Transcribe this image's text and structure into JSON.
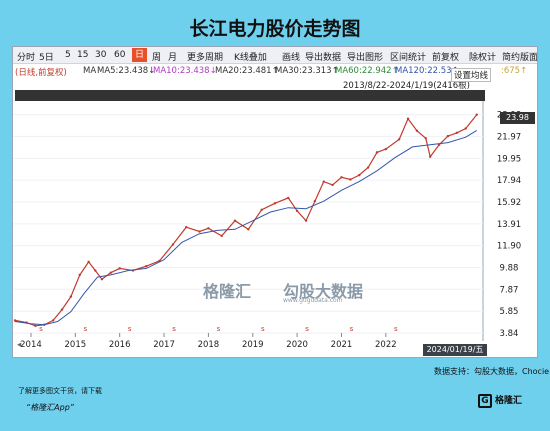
{
  "page_title": "长江电力股价走势图",
  "toolbar": {
    "items": [
      "分时",
      "5日",
      "5",
      "15",
      "30",
      "60",
      "日",
      "周",
      "月",
      "更多周期",
      "K线叠加",
      "画线",
      "导出数据",
      "导出图形",
      "区间统计",
      "前复权",
      "除权计",
      "简约版面"
    ],
    "active": "日"
  },
  "ma_row": {
    "mode": "(日线,前复权)",
    "ma": "MA",
    "ma5": "MA5:23.438↓",
    "ma10": "MA10:23.438↓",
    "ma20": "MA20:23.481↑",
    "ma30": "MA30:23.313↑",
    "ma60": "MA60:22.942↑",
    "ma120": "MA120:22.53↑",
    "extra": ":675↑",
    "settings": "设置均线"
  },
  "date_range": "2013/8/22-2024/1/19(2416根)",
  "crosshair_value": "23.98",
  "x_selected": "2024/01/19/五",
  "watermark": {
    "brand1": "格隆汇",
    "brand2": "勾股大数据",
    "url": "www.gugudata.com"
  },
  "source_text": "数据支持：勾股大数据，Chocie",
  "footer_line1": "了解更多图文干货，请下载",
  "footer_line2": "“格隆汇App”",
  "logo_text": "格隆汇",
  "colors": {
    "price": "#c23a2c",
    "ma_blue": "#3355aa",
    "ma_yellow": "#c9a23a",
    "ma_magenta": "#b03bc0",
    "ma_green": "#2c8a3a"
  },
  "chart_data": {
    "type": "line",
    "title": "长江电力股价走势图",
    "y_ticks": [
      "23.98",
      "21.97",
      "19.95",
      "17.94",
      "15.92",
      "13.91",
      "11.90",
      "9.88",
      "7.87",
      "5.85",
      "3.84"
    ],
    "x_ticks": [
      "2014",
      "2015",
      "2016",
      "2017",
      "2018",
      "2019",
      "2020",
      "2021",
      "2022"
    ],
    "ylim": [
      3.84,
      24.5
    ],
    "series": [
      {
        "x": [
          2013.64,
          2013.9,
          2014.1,
          2014.3,
          2014.5,
          2014.7,
          2014.9,
          2015.1,
          2015.3,
          2015.45,
          2015.6,
          2015.8,
          2016.0,
          2016.3,
          2016.6,
          2016.9,
          2017.2,
          2017.5,
          2017.8,
          2018.0,
          2018.3,
          2018.6,
          2018.9,
          2019.2,
          2019.5,
          2019.8,
          2020.0,
          2020.2,
          2020.4,
          2020.6,
          2020.8,
          2021.0,
          2021.2,
          2021.4,
          2021.6,
          2021.8,
          2022.0,
          2022.3,
          2022.5,
          2022.7,
          2022.9,
          2023.0,
          2023.2,
          2023.4,
          2023.6,
          2023.8,
          2024.05
        ],
        "values": [
          5.0,
          4.8,
          4.5,
          4.6,
          5.0,
          6.0,
          7.2,
          9.2,
          10.4,
          9.6,
          8.8,
          9.4,
          9.8,
          9.6,
          10.0,
          10.5,
          12.0,
          13.6,
          13.2,
          13.5,
          12.8,
          14.2,
          13.4,
          15.2,
          15.8,
          16.3,
          15.1,
          14.2,
          16.0,
          17.8,
          17.5,
          18.2,
          18.0,
          18.4,
          19.1,
          20.5,
          20.8,
          21.7,
          23.6,
          22.5,
          21.8,
          20.1,
          21.2,
          22.0,
          22.3,
          22.7,
          23.98
        ]
      },
      {
        "x": [
          2013.64,
          2014.0,
          2014.3,
          2014.6,
          2014.9,
          2015.2,
          2015.5,
          2015.8,
          2016.2,
          2016.6,
          2017.0,
          2017.4,
          2017.8,
          2018.2,
          2018.6,
          2019.0,
          2019.4,
          2019.8,
          2020.2,
          2020.6,
          2021.0,
          2021.4,
          2021.8,
          2022.2,
          2022.6,
          2023.0,
          2023.4,
          2023.8,
          2024.05
        ],
        "values": [
          4.9,
          4.7,
          4.6,
          4.9,
          5.8,
          7.5,
          9.0,
          9.2,
          9.6,
          9.8,
          10.6,
          12.2,
          13.0,
          13.3,
          13.4,
          14.2,
          15.0,
          15.4,
          15.3,
          16.0,
          17.0,
          17.8,
          18.8,
          20.0,
          21.0,
          21.2,
          21.4,
          21.9,
          22.53
        ]
      }
    ]
  }
}
